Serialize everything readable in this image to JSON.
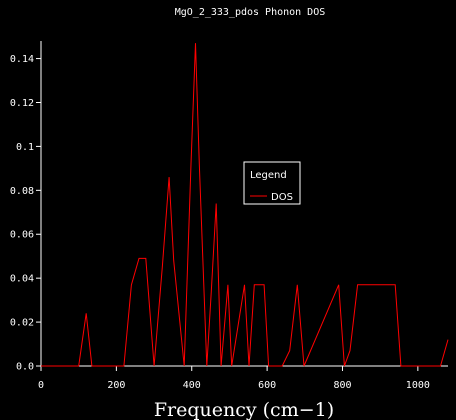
{
  "chart_data": {
    "type": "line",
    "title": "MgO_2_333_pdos Phonon DOS",
    "xlabel": "Frequency (cm−1)",
    "ylabel": "",
    "xlim": [
      0,
      1080
    ],
    "ylim": [
      0,
      0.148
    ],
    "xticks": [
      "0",
      "200",
      "400",
      "600",
      "800",
      "1000"
    ],
    "xtick_values": [
      0,
      200,
      400,
      600,
      800,
      1000
    ],
    "yticks": [
      "0.0",
      "0.02",
      "0.04",
      "0.06",
      "0.08",
      "0.1",
      "0.12",
      "0.14"
    ],
    "ytick_values": [
      0,
      0.02,
      0.04,
      0.06,
      0.08,
      0.1,
      0.12,
      0.14
    ],
    "grid": false,
    "legend": {
      "title": "Legend",
      "placement": "center-right",
      "entries": [
        "DOS"
      ]
    },
    "colors": {
      "background": "#000000",
      "axis": "#ffffff",
      "text": "#ffffff",
      "series": "#ff0000"
    },
    "series": [
      {
        "name": "DOS",
        "color": "#ff0000",
        "x": [
          0,
          100,
          120,
          135,
          220,
          240,
          260,
          278,
          300,
          322,
          340,
          352,
          380,
          398,
          410,
          420,
          440,
          452,
          465,
          478,
          496,
          506,
          540,
          552,
          566,
          592,
          604,
          640,
          660,
          680,
          698,
          790,
          805,
          820,
          840,
          920,
          940,
          955,
          1060,
          1080
        ],
        "y": [
          0,
          0,
          0.024,
          0,
          0,
          0.037,
          0.049,
          0.049,
          0,
          0.045,
          0.086,
          0.048,
          0,
          0.092,
          0.147,
          0.092,
          0,
          0.034,
          0.074,
          0,
          0.037,
          0,
          0.037,
          0,
          0.037,
          0.037,
          0,
          0,
          0.007,
          0.037,
          0,
          0.037,
          0,
          0.007,
          0.037,
          0.037,
          0.037,
          0,
          0,
          0.012
        ]
      }
    ]
  }
}
